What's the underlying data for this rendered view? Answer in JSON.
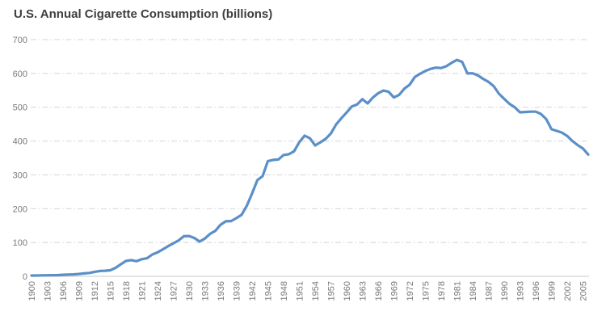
{
  "chart_data": {
    "type": "line",
    "title": "U.S. Annual Cigarette Consumption (billions)",
    "xlabel": "",
    "ylabel": "",
    "xlim": [
      1900,
      2006
    ],
    "ylim": [
      0,
      700
    ],
    "grid": "horizontal-dash-dot",
    "legend": "none",
    "x_tick_step": 3,
    "x_tick_labels": [
      "1900",
      "1903",
      "1906",
      "1909",
      "1912",
      "1915",
      "1918",
      "1921",
      "1924",
      "1927",
      "1930",
      "1933",
      "1936",
      "1939",
      "1942",
      "1945",
      "1948",
      "1951",
      "1954",
      "1957",
      "1960",
      "1963",
      "1966",
      "1969",
      "1972",
      "1975",
      "1978",
      "1981",
      "1984",
      "1987",
      "1990",
      "1993",
      "1996",
      "1999",
      "2002",
      "2005"
    ],
    "y_ticks": [
      0,
      100,
      200,
      300,
      400,
      500,
      600,
      700
    ],
    "x": [
      1900,
      1901,
      1902,
      1903,
      1904,
      1905,
      1906,
      1907,
      1908,
      1909,
      1910,
      1911,
      1912,
      1913,
      1914,
      1915,
      1916,
      1917,
      1918,
      1919,
      1920,
      1921,
      1922,
      1923,
      1924,
      1925,
      1926,
      1927,
      1928,
      1929,
      1930,
      1931,
      1932,
      1933,
      1934,
      1935,
      1936,
      1937,
      1938,
      1939,
      1940,
      1941,
      1942,
      1943,
      1944,
      1945,
      1946,
      1947,
      1948,
      1949,
      1950,
      1951,
      1952,
      1953,
      1954,
      1955,
      1956,
      1957,
      1958,
      1959,
      1960,
      1961,
      1962,
      1963,
      1964,
      1965,
      1966,
      1967,
      1968,
      1969,
      1970,
      1971,
      1972,
      1973,
      1974,
      1975,
      1976,
      1977,
      1978,
      1979,
      1980,
      1981,
      1982,
      1983,
      1984,
      1985,
      1986,
      1987,
      1988,
      1989,
      1990,
      1991,
      1992,
      1993,
      1994,
      1995,
      1996,
      1997,
      1998,
      1999,
      2000,
      2001,
      2002,
      2003,
      2004,
      2005,
      2006
    ],
    "series": [
      {
        "name": "U.S. annual cigarette consumption (billions)",
        "values": [
          2.5,
          2.5,
          2.8,
          3.1,
          3.3,
          3.6,
          4.5,
          5.3,
          5.7,
          7.0,
          8.6,
          10.1,
          13.2,
          15.8,
          16.5,
          17.9,
          25.2,
          35.7,
          45.6,
          48.0,
          44.6,
          50.7,
          53.4,
          64.4,
          71.0,
          79.8,
          89.1,
          97.5,
          106.0,
          118.6,
          119.3,
          113.4,
          102.8,
          111.6,
          125.7,
          134.4,
          152.7,
          162.8,
          163.4,
          172.1,
          181.9,
          208.9,
          245.0,
          284.3,
          296.3,
          340.6,
          344.3,
          345.4,
          358.9,
          360.9,
          369.8,
          397.1,
          416.0,
          408.2,
          387.0,
          396.4,
          406.5,
          422.5,
          449.2,
          467.5,
          484.4,
          502.5,
          508.4,
          523.9,
          511.3,
          528.8,
          541.3,
          549.3,
          545.6,
          528.9,
          536.5,
          555.1,
          566.8,
          589.7,
          599.0,
          607.2,
          613.5,
          617.0,
          616.0,
          621.5,
          631.5,
          640.0,
          634.0,
          600.0,
          600.4,
          594.0,
          583.8,
          575.0,
          562.5,
          540.0,
          525.0,
          510.0,
          500.0,
          485.0,
          486.0,
          487.0,
          487.0,
          480.0,
          465.0,
          435.0,
          430.0,
          425.0,
          415.0,
          400.0,
          388.0,
          378.0,
          360.0
        ]
      }
    ],
    "colors": {
      "line": "#5b8fc8",
      "grid": "#d4d4d4",
      "axis": "#c8c8c8",
      "title": "#3f3f3f",
      "tick_labels": "#7a7a7a",
      "background": "#ffffff"
    }
  }
}
